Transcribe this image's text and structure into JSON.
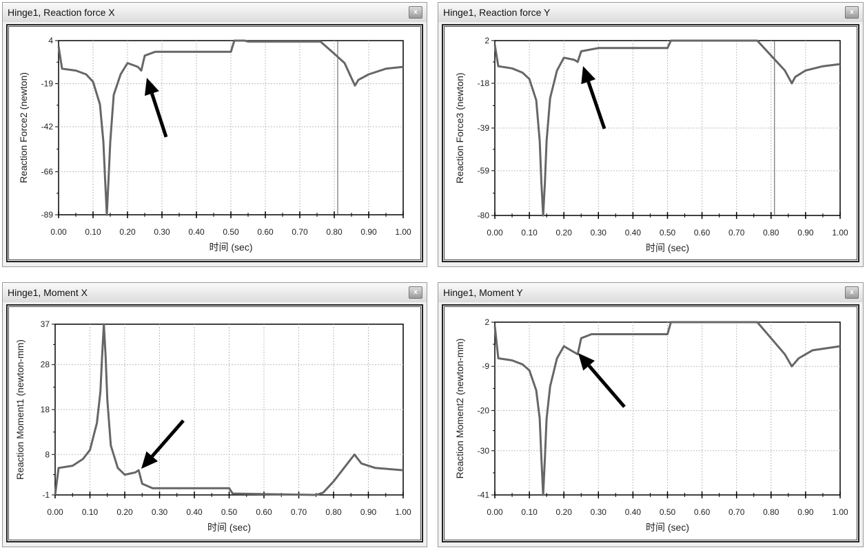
{
  "chart_data": [
    {
      "type": "line",
      "title": "Hinge1, Reaction force X",
      "xlabel": "时间 (sec)",
      "ylabel": "Reaction Force2 (newton)",
      "xlim": [
        0,
        1
      ],
      "ylim": [
        -89,
        4
      ],
      "xticks": [
        "0.00",
        "0.10",
        "0.20",
        "0.30",
        "0.40",
        "0.50",
        "0.60",
        "0.70",
        "0.80",
        "0.90",
        "1.00"
      ],
      "yticks": [
        "4",
        "-19",
        "-42",
        "-66",
        "-89"
      ],
      "ytick_values": [
        4,
        -19,
        -42,
        -66,
        -89
      ],
      "grid": true,
      "cursor_x": 0.81,
      "x": [
        0,
        0.01,
        0.05,
        0.08,
        0.1,
        0.12,
        0.13,
        0.135,
        0.14,
        0.145,
        0.15,
        0.16,
        0.18,
        0.2,
        0.23,
        0.24,
        0.25,
        0.28,
        0.3,
        0.5,
        0.51,
        0.54,
        0.55,
        0.76,
        0.8,
        0.83,
        0.86,
        0.87,
        0.9,
        0.95,
        1.0
      ],
      "y": [
        1,
        -11,
        -12,
        -14,
        -18,
        -30,
        -50,
        -70,
        -89,
        -70,
        -50,
        -25,
        -14,
        -8,
        -10,
        -12,
        -4,
        -2,
        -2,
        -2,
        4,
        4,
        3.5,
        3.5,
        -3,
        -8,
        -20,
        -17,
        -14,
        -11,
        -10
      ]
    },
    {
      "type": "line",
      "title": "Hinge1, Reaction force Y",
      "xlabel": "时间 (sec)",
      "ylabel": "Reaction Force3 (newton)",
      "xlim": [
        0,
        1
      ],
      "ylim": [
        -80,
        2
      ],
      "xticks": [
        "0.00",
        "0.10",
        "0.20",
        "0.30",
        "0.40",
        "0.50",
        "0.60",
        "0.70",
        "0.80",
        "0.90",
        "1.00"
      ],
      "yticks": [
        "2",
        "-18",
        "-39",
        "-59",
        "-80"
      ],
      "ytick_values": [
        2,
        -18,
        -39,
        -59,
        -80
      ],
      "grid": true,
      "cursor_x": 0.81,
      "x": [
        0,
        0.01,
        0.05,
        0.08,
        0.1,
        0.12,
        0.13,
        0.135,
        0.14,
        0.145,
        0.15,
        0.16,
        0.18,
        0.2,
        0.23,
        0.24,
        0.25,
        0.3,
        0.5,
        0.51,
        0.76,
        0.8,
        0.84,
        0.86,
        0.87,
        0.9,
        0.95,
        1.0
      ],
      "y": [
        0,
        -10,
        -11,
        -13,
        -16,
        -26,
        -45,
        -65,
        -80,
        -65,
        -45,
        -25,
        -12,
        -6,
        -7,
        -8,
        -3,
        -1.5,
        -1.5,
        2,
        2,
        -5,
        -12,
        -18,
        -15,
        -12,
        -10,
        -9
      ]
    },
    {
      "type": "line",
      "title": "Hinge1, Moment X",
      "xlabel": "时间 (sec)",
      "ylabel": "Reaction Moment1 (newton-mm)",
      "xlim": [
        0,
        1
      ],
      "ylim": [
        -1,
        37
      ],
      "xticks": [
        "0.00",
        "0.10",
        "0.20",
        "0.30",
        "0.40",
        "0.50",
        "0.60",
        "0.70",
        "0.80",
        "0.90",
        "1.00"
      ],
      "yticks": [
        "37",
        "28",
        "18",
        "8",
        "-1"
      ],
      "ytick_values": [
        37,
        28,
        18,
        8,
        -1
      ],
      "grid": true,
      "x": [
        0,
        0.01,
        0.05,
        0.08,
        0.1,
        0.12,
        0.13,
        0.135,
        0.14,
        0.145,
        0.15,
        0.16,
        0.18,
        0.2,
        0.23,
        0.24,
        0.25,
        0.28,
        0.5,
        0.51,
        0.75,
        0.77,
        0.8,
        0.84,
        0.86,
        0.88,
        0.92,
        1.0
      ],
      "y": [
        -1,
        5,
        5.5,
        7,
        9,
        15,
        22,
        30,
        37,
        30,
        20,
        10,
        5,
        3.5,
        4,
        4.5,
        1.5,
        0.5,
        0.5,
        -0.7,
        -1,
        -0.5,
        2,
        6,
        8,
        6,
        5,
        4.5
      ]
    },
    {
      "type": "line",
      "title": "Hinge1, Moment Y",
      "xlabel": "时间 (sec)",
      "ylabel": "Reaction Moment2 (newton-mm)",
      "xlim": [
        0,
        1
      ],
      "ylim": [
        -41,
        2
      ],
      "xticks": [
        "0.00",
        "0.10",
        "0.20",
        "0.30",
        "0.40",
        "0.50",
        "0.60",
        "0.70",
        "0.80",
        "0.90",
        "1.00"
      ],
      "yticks": [
        "2",
        "-9",
        "-20",
        "-30",
        "-41"
      ],
      "ytick_values": [
        2,
        -9,
        -20,
        -30,
        -41
      ],
      "grid": true,
      "x": [
        0,
        0.01,
        0.05,
        0.08,
        0.1,
        0.12,
        0.13,
        0.135,
        0.14,
        0.145,
        0.15,
        0.16,
        0.18,
        0.2,
        0.24,
        0.25,
        0.28,
        0.5,
        0.51,
        0.76,
        0.8,
        0.84,
        0.86,
        0.88,
        0.92,
        1.0
      ],
      "y": [
        1,
        -7,
        -7.5,
        -8.5,
        -10,
        -15,
        -22,
        -32,
        -41,
        -32,
        -22,
        -14,
        -7,
        -4,
        -6,
        -2,
        -1,
        -1,
        2,
        2,
        -2,
        -6,
        -9,
        -7,
        -5,
        -4
      ]
    }
  ],
  "window": {
    "close_label": "x"
  },
  "colors": {
    "line": "#666666",
    "grid": "#bbbbbb",
    "arrow": "#000000"
  }
}
